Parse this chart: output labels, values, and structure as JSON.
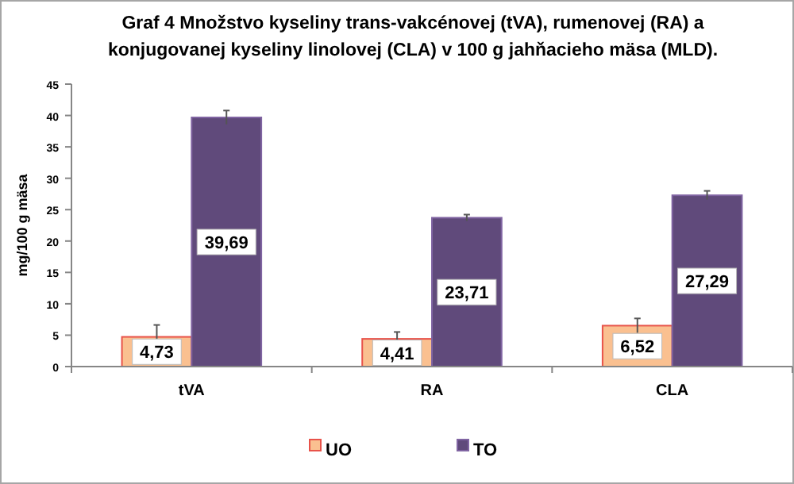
{
  "chart_data": {
    "type": "bar",
    "title": "Graf 4 Množstvo kyseliny trans-vakcénovej (tVA),  rumenovej (RA) a konjugovanej kyseliny linolovej (CLA) v 100 g jahňacieho mäsa (MLD).",
    "ylabel": "mg/100 g mäsa",
    "categories": [
      "tVA",
      "RA",
      "CLA"
    ],
    "series": [
      {
        "name": "UO",
        "color": "#fac090",
        "values": [
          4.73,
          4.41,
          6.52
        ],
        "errors": [
          1.9,
          1.1,
          1.15
        ],
        "value_labels": [
          "4,73",
          "4,41",
          "6,52"
        ]
      },
      {
        "name": "TO",
        "color": "#604a7b",
        "values": [
          39.69,
          23.71,
          27.29
        ],
        "errors": [
          1.1,
          0.5,
          0.7
        ],
        "value_labels": [
          "39,69",
          "23,71",
          "27,29"
        ]
      }
    ],
    "ylim": [
      0,
      45
    ],
    "yticks": [
      0,
      5,
      10,
      15,
      20,
      25,
      30,
      35,
      40,
      45
    ],
    "grid": false,
    "legend": "bottom"
  }
}
